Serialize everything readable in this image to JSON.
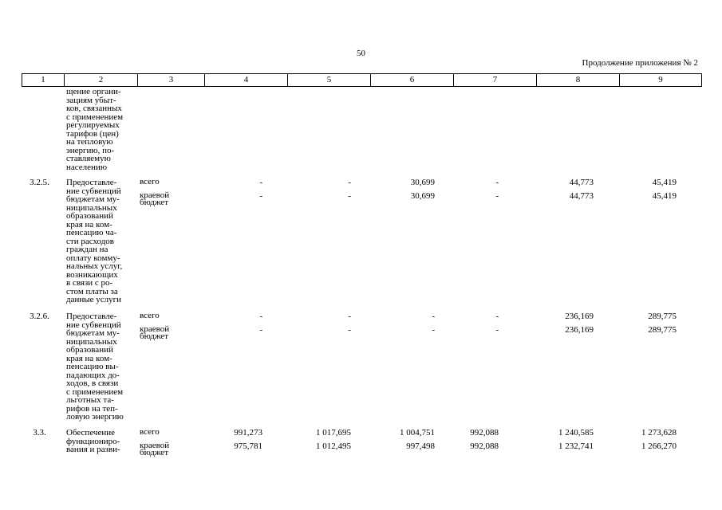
{
  "page_number": "50",
  "subtitle": "Продолжение приложения № 2",
  "header_columns": [
    "1",
    "2",
    "3",
    "4",
    "5",
    "6",
    "7",
    "8",
    "9"
  ],
  "rows": [
    {
      "id": "row-continuation",
      "num": "",
      "name": "щение органи-\nзациям убыт-\nков, связанных\nс применением\nрегулируемых\nтарифов (цен)\nна тепловую\nэнергию, по-\nставляемую\nнаселению",
      "lines": []
    },
    {
      "id": "row-3-2-5",
      "num": "3.2.5.",
      "name": "Предоставле-\nние субвенций\nбюджетам му-\nниципальных\nобразований\nкрая на ком-\nпенсацию ча-\nсти расходов\nграждан на\nоплату комму-\nнальных услуг,\nвозникающих\nв связи с ро-\nстом платы за\nданные услуги",
      "lines": [
        {
          "source": "всего",
          "v": [
            "-",
            "-",
            "30,699",
            "-",
            "44,773",
            "45,419"
          ]
        },
        {
          "source": "краевой\nбюджет",
          "v": [
            "-",
            "-",
            "30,699",
            "-",
            "44,773",
            "45,419"
          ]
        }
      ]
    },
    {
      "id": "row-3-2-6",
      "num": "3.2.6.",
      "name": "Предоставле-\nние субвенций\nбюджетам му-\nниципальных\nобразований\nкрая на ком-\nпенсацию вы-\nпадающих до-\nходов, в связи\nс применением\nльготных та-\nрифов на теп-\nловую энергию",
      "lines": [
        {
          "source": "всего",
          "v": [
            "-",
            "-",
            "-",
            "-",
            "236,169",
            "289,775"
          ]
        },
        {
          "source": "краевой\nбюджет",
          "v": [
            "-",
            "-",
            "-",
            "-",
            "236,169",
            "289,775"
          ]
        }
      ]
    },
    {
      "id": "row-3-3",
      "num": "3.3.",
      "name": "Обеспечение\nфункциониро-\nвания и разви-",
      "lines": [
        {
          "source": "всего",
          "v": [
            "991,273",
            "1 017,695",
            "1 004,751",
            "992,088",
            "1 240,585",
            "1 273,628"
          ]
        },
        {
          "source": "краевой\nбюджет",
          "v": [
            "975,781",
            "1 012,495",
            "997,498",
            "992,088",
            "1 232,741",
            "1 266,270"
          ]
        }
      ]
    }
  ]
}
